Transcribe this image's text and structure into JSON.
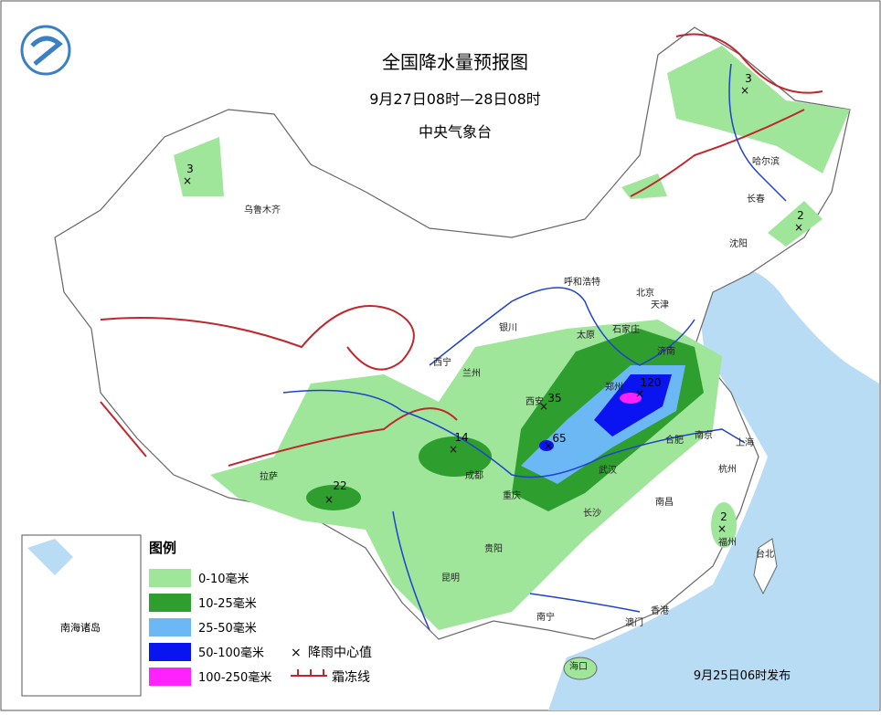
{
  "header": {
    "title": "全国降水量预报图",
    "subtitle": "9月27日08时—28日08时",
    "issuer": "中央气象台"
  },
  "cities": [
    "乌鲁木齐",
    "哈尔滨",
    "长春",
    "沈阳",
    "呼和浩特",
    "北京",
    "天津",
    "石家庄",
    "太原",
    "济南",
    "银川",
    "西宁",
    "兰州",
    "西安",
    "郑州",
    "拉萨",
    "成都",
    "重庆",
    "武汉",
    "合肥",
    "南京",
    "上海",
    "杭州",
    "长沙",
    "南昌",
    "贵阳",
    "福州",
    "台北",
    "昆明",
    "南宁",
    "香港",
    "澳门",
    "海口"
  ],
  "inset_label": "南海诸岛",
  "rain_centers": [
    3,
    3,
    2,
    14,
    22,
    35,
    65,
    120,
    2
  ],
  "legend": {
    "title": "图例",
    "items": [
      {
        "label": "0-10毫米",
        "color": "#9fe59a"
      },
      {
        "label": "10-25毫米",
        "color": "#2e9e2e"
      },
      {
        "label": "25-50毫米",
        "color": "#6cb8f5"
      },
      {
        "label": "50-100毫米",
        "color": "#0a14f0"
      },
      {
        "label": "100-250毫米",
        "color": "#ff22ff"
      }
    ],
    "center_label": "降雨中心值",
    "frost_label": "霜冻线"
  },
  "footer": "9月25日06时发布"
}
